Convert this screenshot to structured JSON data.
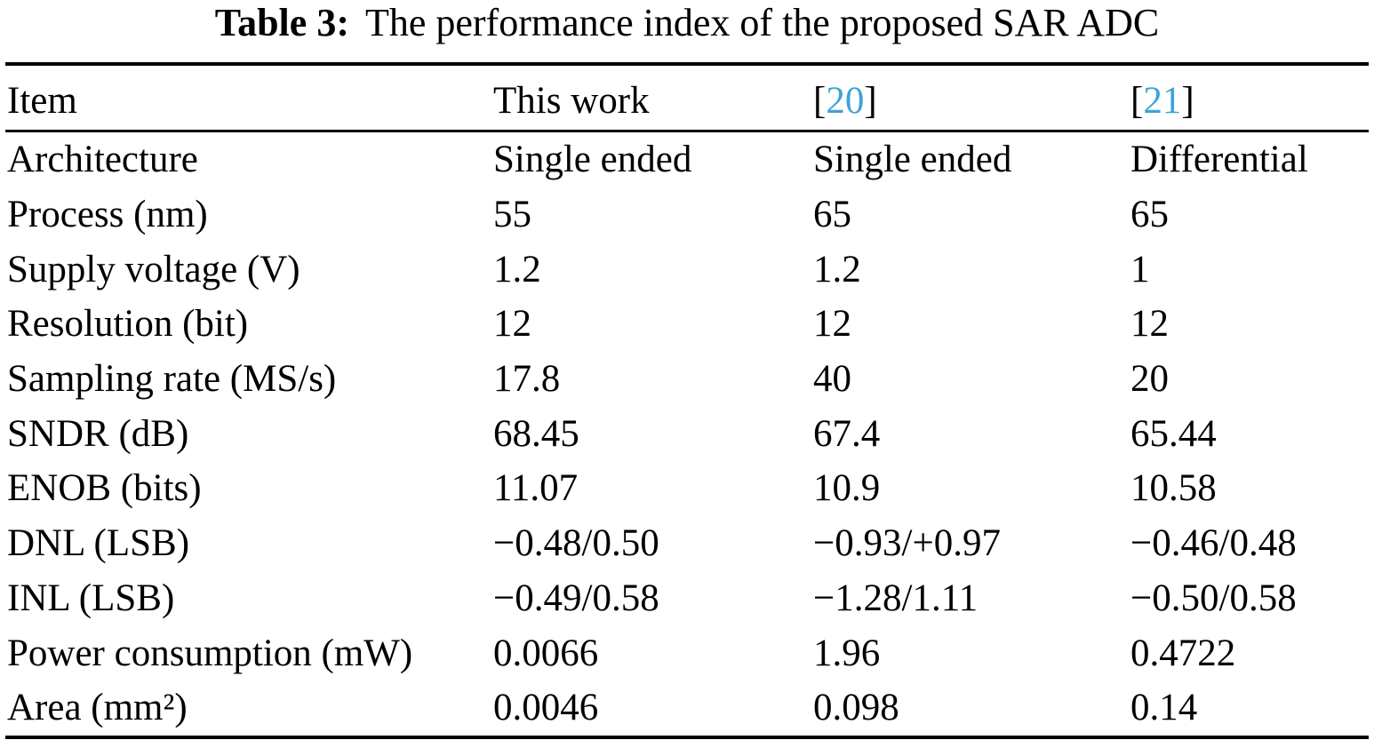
{
  "title": {
    "label": "Table 3:",
    "text": "The performance index of the proposed SAR ADC"
  },
  "colors": {
    "citation_link": "#3fa3d6",
    "text": "#000000",
    "rule": "#000000",
    "background": "#ffffff"
  },
  "header": {
    "item": "Item",
    "this_work": "This work",
    "ref20": {
      "open": "[",
      "number": "20",
      "close": "]"
    },
    "ref21": {
      "open": "[",
      "number": "21",
      "close": "]"
    }
  },
  "rows": [
    {
      "item": "Architecture",
      "this_work": "Single ended",
      "ref20": "Single ended",
      "ref21": "Differential"
    },
    {
      "item": "Process (nm)",
      "this_work": "55",
      "ref20": "65",
      "ref21": "65"
    },
    {
      "item": "Supply voltage (V)",
      "this_work": "1.2",
      "ref20": "1.2",
      "ref21": "1"
    },
    {
      "item": "Resolution (bit)",
      "this_work": "12",
      "ref20": "12",
      "ref21": "12"
    },
    {
      "item": "Sampling rate (MS/s)",
      "this_work": "17.8",
      "ref20": "40",
      "ref21": "20"
    },
    {
      "item": "SNDR (dB)",
      "this_work": "68.45",
      "ref20": "67.4",
      "ref21": "65.44"
    },
    {
      "item": "ENOB (bits)",
      "this_work": "11.07",
      "ref20": "10.9",
      "ref21": "10.58"
    },
    {
      "item": "DNL (LSB)",
      "this_work": "−0.48/0.50",
      "ref20": "−0.93/+0.97",
      "ref21": "−0.46/0.48"
    },
    {
      "item": "INL (LSB)",
      "this_work": "−0.49/0.58",
      "ref20": "−1.28/1.11",
      "ref21": "−0.50/0.58"
    },
    {
      "item": "Power consumption (mW)",
      "this_work": "0.0066",
      "ref20": "1.96",
      "ref21": "0.4722"
    },
    {
      "item": "Area (mm²)",
      "this_work": "0.0046",
      "ref20": "0.098",
      "ref21": "0.14"
    }
  ]
}
